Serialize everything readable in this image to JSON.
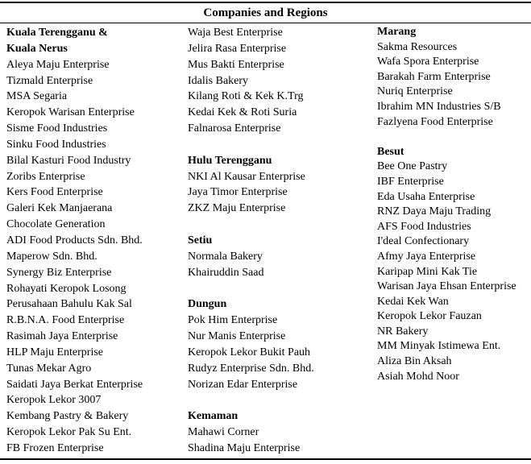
{
  "title": "Companies and Regions",
  "colors": {
    "text": "#000000",
    "background": "#ffffff",
    "rule": "#000000"
  },
  "columns": [
    {
      "blocks": [
        {
          "region_lines": [
            "Kuala Terengganu &",
            "Kuala Nerus"
          ],
          "companies": [
            "Aleya Maju Enterprise",
            "Tizmald Enterprise",
            "MSA Segaria",
            "Keropok Warisan Enterprise",
            "Sisme Food Industries",
            "Sinku Food Industries",
            "Bilal Kasturi Food Industry",
            "Zoribs Enterprise",
            "Kers Food Enterprise",
            "Galeri Kek Manjaerana",
            "Chocolate Generation",
            "ADI Food Products Sdn. Bhd.",
            "Maperow Sdn. Bhd.",
            "Synergy Biz Enterprise",
            "Rohayati Keropok Losong",
            "Perusahaan Bahulu Kak Sal",
            "R.B.N.A. Food Enterprise",
            "Rasimah Jaya Enterprise",
            "HLP Maju Enterprise",
            "Tunas Mekar Agro",
            "Saidati Jaya Berkat Enterprise",
            "Keropok Lekor 3007",
            "Kembang Pastry & Bakery",
            "Keropok Lekor Pak Su Ent.",
            "FB Frozen Enterprise"
          ]
        }
      ]
    },
    {
      "blocks": [
        {
          "region_lines": [],
          "companies": [
            "Waja Best Enterprise",
            "Jelira Rasa Enterprise",
            "Mus Bakti Enterprise",
            "Idalis Bakery",
            "Kilang Roti & Kek K.Trg",
            "Kedai Kek & Roti Suria",
            "Falnarosa Enterprise"
          ]
        },
        {
          "region_lines": [
            "Hulu Terengganu"
          ],
          "companies": [
            "NKI Al Kausar Enterprise",
            "Jaya Timor Enterprise",
            "ZKZ Maju Enterprise"
          ]
        },
        {
          "region_lines": [
            "Setiu"
          ],
          "companies": [
            "Normala Bakery",
            "Khairuddin Saad"
          ]
        },
        {
          "region_lines": [
            "Dungun"
          ],
          "companies": [
            "Pok Him Enterprise",
            "Nur Manis Enterprise",
            "Keropok Lekor Bukit Pauh",
            "Rudyz Enterprise Sdn. Bhd.",
            "Norizan Edar Enterprise"
          ]
        },
        {
          "region_lines": [
            "Kemaman"
          ],
          "companies": [
            "Mahawi Corner",
            "Shadina Maju Enterprise"
          ]
        }
      ]
    },
    {
      "blocks": [
        {
          "region_lines": [
            "Marang"
          ],
          "companies": [
            "Sakma Resources",
            "Wafa Spora Enterprise",
            "Barakah Farm Enterprise",
            "Nuriq Enterprise",
            "Ibrahim MN Industries S/B",
            "Fazlyena Food Enterprise"
          ]
        },
        {
          "region_lines": [
            "Besut"
          ],
          "companies": [
            "Bee One Pastry",
            "IBF Enterprise",
            "Eda Usaha Enterprise",
            "RNZ Daya Maju Trading",
            "AFS Food Industries",
            "I'deal Confectionary",
            "Afmy Jaya Enterprise",
            "Karipap Mini Kak Tie",
            "Warisan Jaya Ehsan Enterprise",
            "Kedai Kek Wan",
            "Keropok Lekor Fauzan",
            "NR Bakery",
            "MM Minyak Istimewa Ent.",
            "Aliza Bin Aksah",
            "Asiah Mohd Noor"
          ]
        }
      ]
    }
  ]
}
